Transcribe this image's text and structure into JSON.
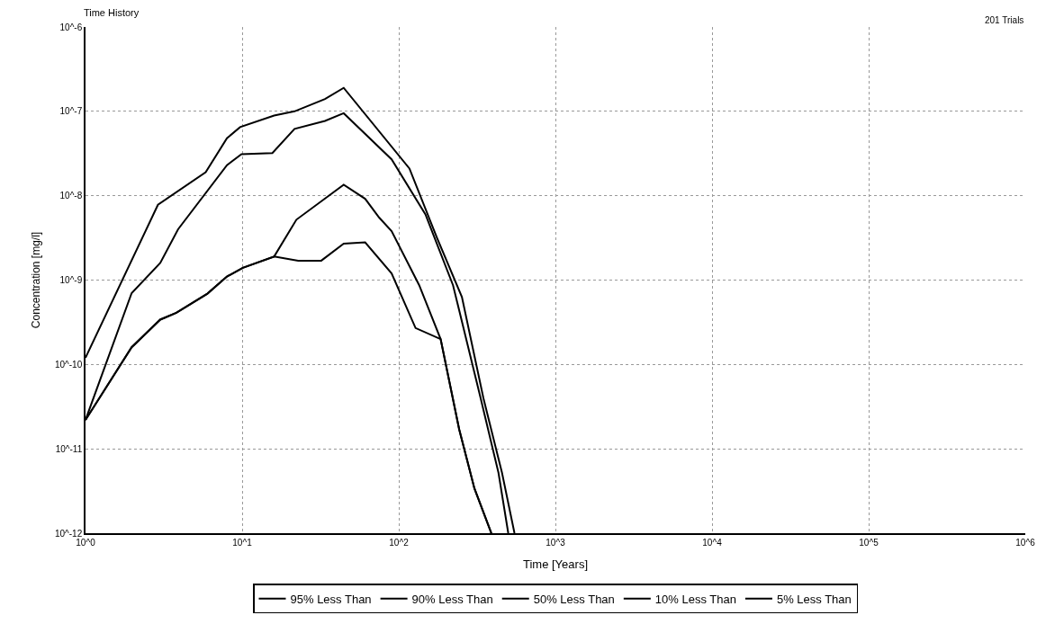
{
  "chart_data": {
    "type": "line",
    "title": "Time History",
    "xlabel": "Time [Years]",
    "ylabel": "Concentration [mg/l]",
    "annotations": [
      "201 Trials"
    ],
    "log": "xy",
    "grid": true,
    "legend": "bottom",
    "marker": "none",
    "line_style": "solid",
    "xlim": [
      1,
      1000000
    ],
    "xticks": [
      {
        "value": 1,
        "label": "10^0"
      },
      {
        "value": 10,
        "label": "10^1"
      },
      {
        "value": 100,
        "label": "10^2"
      },
      {
        "value": 1000,
        "label": "10^3"
      },
      {
        "value": 10000,
        "label": "10^4"
      },
      {
        "value": 100000,
        "label": "10^5"
      },
      {
        "value": 1000000,
        "label": "10^6"
      }
    ],
    "ylim": [
      1e-12,
      1e-06
    ],
    "yticks": [
      {
        "value": 1e-12,
        "label": "10^-12"
      },
      {
        "value": 1e-11,
        "label": "10^-11"
      },
      {
        "value": 1e-10,
        "label": "10^-10"
      },
      {
        "value": 1e-09,
        "label": "10^-9"
      },
      {
        "value": 1e-08,
        "label": "10^-8"
      },
      {
        "value": 1e-07,
        "label": "10^-7"
      },
      {
        "value": 1e-06,
        "label": "10^-6"
      }
    ],
    "series": [
      {
        "name": "95% Less Than",
        "color": "#000000",
        "x": [
          1,
          2.9,
          5.85,
          8.0,
          9.7,
          16,
          21.6,
          33.8,
          44.5,
          117,
          175,
          253,
          347,
          456,
          548
        ],
        "values": [
          1.2e-10,
          7.8e-09,
          1.9e-08,
          4.8e-08,
          6.5e-08,
          8.9e-08,
          1e-07,
          1.4e-07,
          1.9e-07,
          2.1e-08,
          3.2e-09,
          6.3e-10,
          4e-11,
          5.2e-12,
          1e-12
        ]
      },
      {
        "name": "90% Less Than",
        "color": "#000000",
        "x": [
          1,
          1.97,
          3.0,
          3.9,
          8.0,
          9.9,
          15.6,
          21.6,
          33.8,
          44.5,
          90,
          148,
          222,
          333,
          433,
          500
        ],
        "values": [
          2.2e-11,
          7e-10,
          1.6e-09,
          4e-09,
          2.3e-08,
          3.1e-08,
          3.2e-08,
          6.2e-08,
          7.7e-08,
          9.5e-08,
          2.7e-08,
          6e-09,
          8.7e-10,
          4e-11,
          5.2e-12,
          1e-12
        ]
      },
      {
        "name": "50% Less Than",
        "color": "#000000",
        "x": [
          1,
          1.97,
          3.0,
          3.8,
          6.0,
          8.0,
          10.1,
          16,
          22.2,
          44.5,
          61,
          75,
          90,
          135,
          185,
          243,
          304,
          390
        ],
        "values": [
          2.2e-11,
          1.6e-10,
          3.4e-10,
          4.1e-10,
          6.9e-10,
          1.1e-09,
          1.4e-09,
          1.9e-09,
          5.2e-09,
          1.35e-08,
          9.2e-09,
          5.5e-09,
          3.8e-09,
          8.7e-10,
          2e-10,
          1.7e-11,
          3.4e-12,
          1e-12
        ]
      },
      {
        "name": "10% Less Than",
        "color": "#000000",
        "x": [
          1,
          1.97,
          3.0,
          3.8,
          6.0,
          8.0,
          10.1,
          16,
          22.8,
          32,
          44.5,
          61,
          90,
          128,
          185,
          243,
          304,
          390
        ],
        "values": [
          2.2e-11,
          1.6e-10,
          3.4e-10,
          4.1e-10,
          6.9e-10,
          1.1e-09,
          1.4e-09,
          1.9e-09,
          1.7e-09,
          1.7e-09,
          2.7e-09,
          2.8e-09,
          1.2e-09,
          2.7e-10,
          2e-10,
          1.7e-11,
          3.4e-12,
          1e-12
        ]
      },
      {
        "name": "5% Less Than",
        "color": "#000000"
      }
    ]
  }
}
